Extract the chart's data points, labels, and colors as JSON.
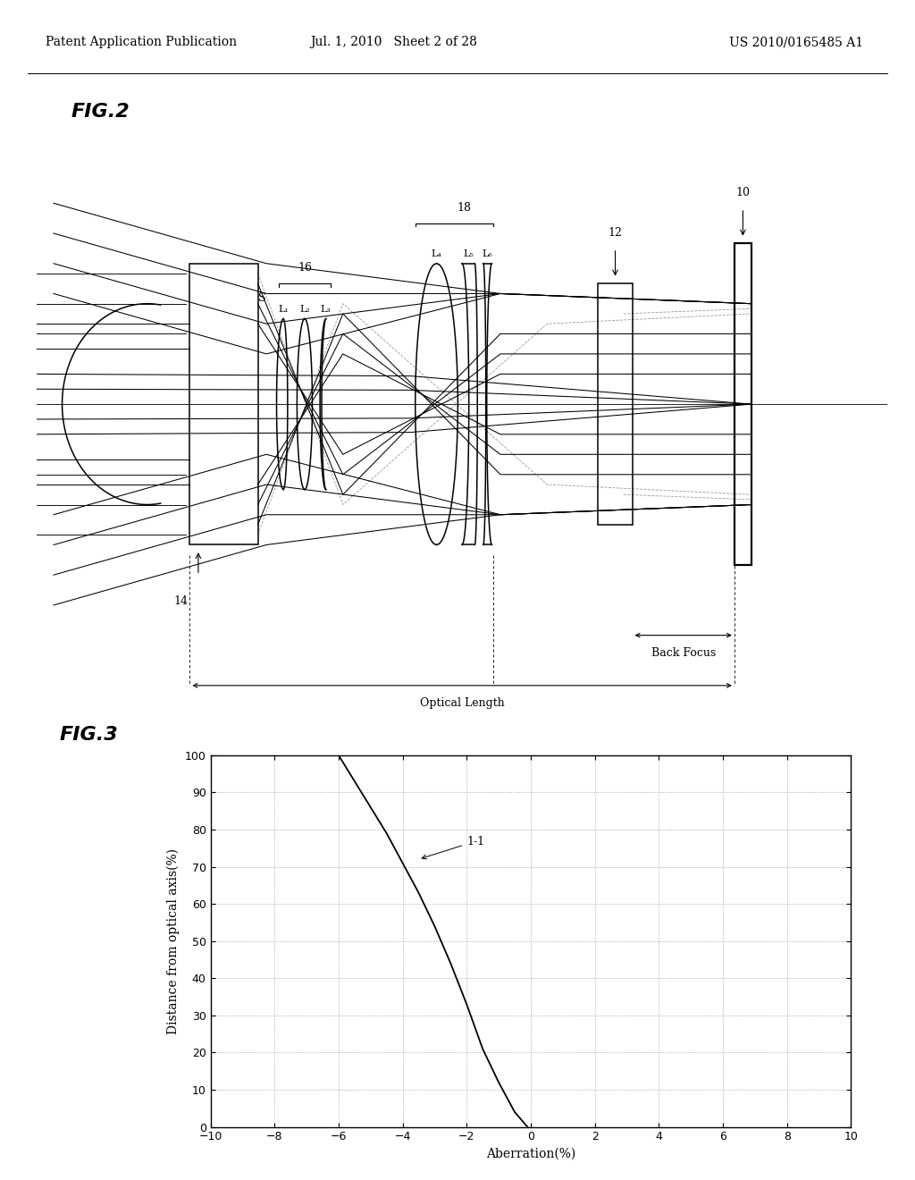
{
  "header_left": "Patent Application Publication",
  "header_mid": "Jul. 1, 2010   Sheet 2 of 28",
  "header_right": "US 2010/0165485 A1",
  "fig2_title": "FIG.2",
  "fig3_title": "FIG.3",
  "label_10": "10",
  "label_12": "12",
  "label_14": "14",
  "label_16": "16",
  "label_18": "18",
  "label_S": "S",
  "label_L1": "L₁",
  "label_L2": "L₂",
  "label_L3": "L₃",
  "label_L4": "L₄",
  "label_L5": "L₅",
  "label_L6": "L₆",
  "back_focus_label": "Back Focus",
  "optical_length_label": "Optical Length",
  "curve_label": "1-1",
  "xlabel": "Aberration(%)",
  "ylabel": "Distance from optical axis(%)",
  "xlim": [
    -10,
    10
  ],
  "ylim": [
    0,
    100
  ],
  "xticks": [
    -10,
    -8,
    -6,
    -4,
    -2,
    0,
    2,
    4,
    6,
    8,
    10
  ],
  "yticks": [
    0,
    10,
    20,
    30,
    40,
    50,
    60,
    70,
    80,
    90,
    100
  ],
  "curve_x": [
    -6.0,
    -5.5,
    -5.0,
    -4.5,
    -4.0,
    -3.5,
    -3.0,
    -2.5,
    -2.0,
    -1.5,
    -1.0,
    -0.5,
    -0.1
  ],
  "curve_y": [
    100,
    93,
    86,
    79,
    71,
    63,
    54,
    44,
    33,
    21,
    12,
    4,
    0
  ],
  "bg_color": "#ffffff",
  "line_color": "#000000",
  "grid_color": "#999999",
  "header_fontsize": 10,
  "fig_title_fontsize": 18
}
